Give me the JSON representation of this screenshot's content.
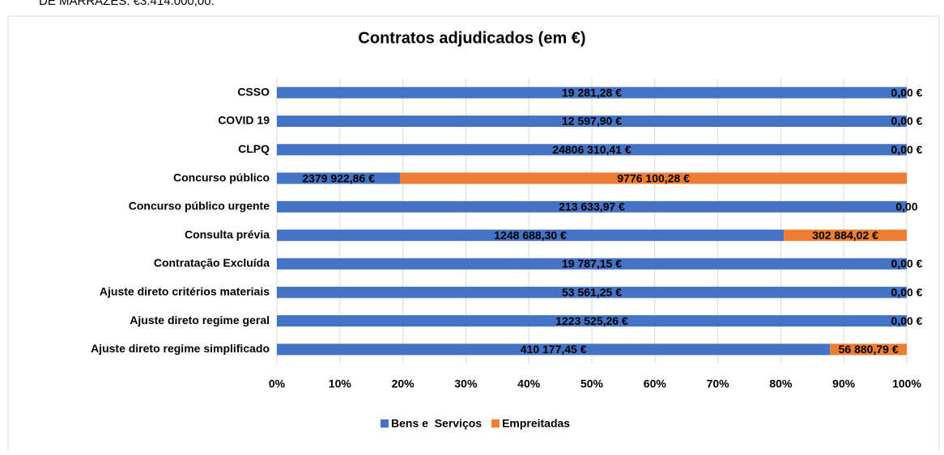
{
  "header_fragment": "DE MARRAZES: €3.414.000,00.",
  "chart_data": {
    "type": "bar",
    "orientation": "horizontal",
    "stacking": "percent",
    "title": "Contratos adjudicados  (em €)",
    "categories": [
      "CSSO",
      "COVID 19",
      "CLPQ",
      "Concurso público",
      "Concurso público urgente",
      "Consulta prévia",
      "Contratação Excluída",
      "Ajuste direto critérios materiais",
      "Ajuste direto regime geral",
      "Ajuste direto regime simplificado"
    ],
    "series": [
      {
        "name": "Bens e  Serviços",
        "color": "#4472c4",
        "values": [
          19281.28,
          12597.9,
          24806310.41,
          2379922.86,
          213633.97,
          1248688.3,
          19787.15,
          53561.25,
          1223525.26,
          410177.45
        ],
        "value_labels": [
          "19 281,28 €",
          "12 597,90 €",
          "24806 310,41 €",
          "2379 922,86 €",
          "213 633,97 €",
          "1248 688,30 €",
          "19 787,15 €",
          "53 561,25 €",
          "1223 525,26 €",
          "410 177,45 €"
        ]
      },
      {
        "name": "Empreitadas",
        "color": "#ed7d31",
        "values": [
          0,
          0,
          0,
          9776100.28,
          0,
          302884.02,
          0,
          0,
          0,
          56880.79
        ],
        "value_labels": [
          "0,00 €",
          "0,00 €",
          "0,00 €",
          "9776 100,28 €",
          "0,00",
          "302 884,02 €",
          "0,00 €",
          "0,00 €",
          "0,00 €",
          "56 880,79 €"
        ]
      }
    ],
    "xlim": [
      0,
      100
    ],
    "xticks": [
      {
        "value": 0,
        "label": "0%"
      },
      {
        "value": 10,
        "label": "10%"
      },
      {
        "value": 20,
        "label": "20%"
      },
      {
        "value": 30,
        "label": "30%"
      },
      {
        "value": 40,
        "label": "40%"
      },
      {
        "value": 50,
        "label": "50%"
      },
      {
        "value": 60,
        "label": "60%"
      },
      {
        "value": 70,
        "label": "70%"
      },
      {
        "value": 80,
        "label": "80%"
      },
      {
        "value": 90,
        "label": "90%"
      },
      {
        "value": 100,
        "label": "100%"
      }
    ],
    "grid": true,
    "legend": "bottom"
  }
}
